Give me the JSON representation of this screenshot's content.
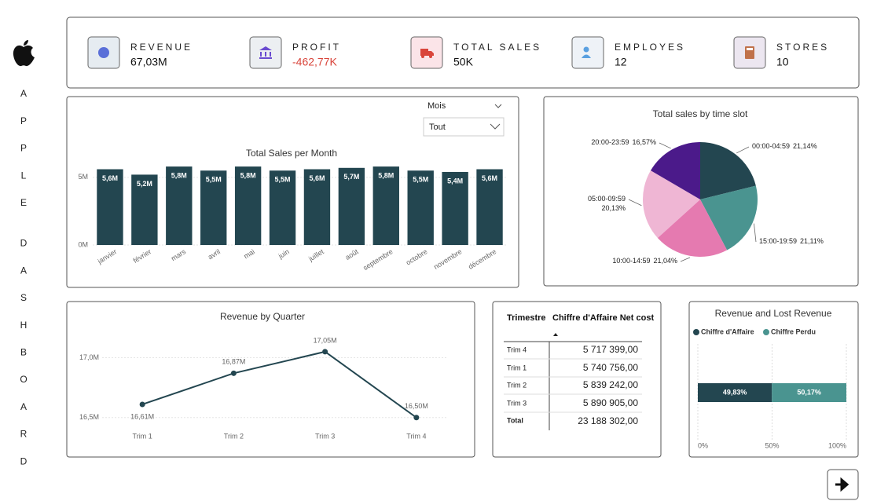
{
  "sidebar": [
    [
      "A",
      "P",
      "P",
      "L",
      "E"
    ],
    [
      "D",
      "A",
      "S",
      "H",
      "B",
      "O",
      "A",
      "R",
      "D"
    ]
  ],
  "kpis": [
    {
      "label": "REVENUE",
      "value": "67,03M"
    },
    {
      "label": "PROFIT",
      "value": "-462,77K"
    },
    {
      "label": "TOTAL SALES",
      "value": "50K"
    },
    {
      "label": "EMPLOYES",
      "value": "12"
    },
    {
      "label": "STORES",
      "value": "10"
    }
  ],
  "filter": {
    "label": "Mois",
    "value": "Tout"
  },
  "table": {
    "header": [
      "Trimestre",
      "Chiffre d'Affaire Net cost"
    ],
    "rows": [
      [
        "Trim 4",
        "5 717 399,00"
      ],
      [
        "Trim 1",
        "5 740 756,00"
      ],
      [
        "Trim 2",
        "5 839 242,00"
      ],
      [
        "Trim 3",
        "5 890 905,00"
      ]
    ],
    "total": [
      "Total",
      "23 188 302,00"
    ]
  },
  "chart_data": [
    {
      "type": "bar",
      "title": "Total Sales per Month",
      "categories": [
        "janvier",
        "février",
        "mars",
        "avril",
        "mai",
        "juin",
        "juillet",
        "août",
        "septembre",
        "octobre",
        "novembre",
        "décembre"
      ],
      "values": [
        5.6,
        5.2,
        5.8,
        5.5,
        5.8,
        5.5,
        5.6,
        5.7,
        5.8,
        5.5,
        5.4,
        5.6
      ],
      "value_labels": [
        "5,6M",
        "5,2M",
        "5,8M",
        "5,5M",
        "5,8M",
        "5,5M",
        "5,6M",
        "5,7M",
        "5,8M",
        "5,5M",
        "5,4M",
        "5,6M"
      ],
      "color": "#234650",
      "ylim": [
        0,
        6.5
      ],
      "yticks": [
        {
          "value": 0,
          "label": "0M"
        },
        {
          "value": 5,
          "label": "5M"
        }
      ],
      "grid": true
    },
    {
      "type": "pie",
      "title": "Total sales by time slot",
      "categories": [
        "00:00-04:59",
        "15:00-19:59",
        "10:00-14:59",
        "05:00-09:59",
        "20:00-23:59"
      ],
      "values": [
        21.14,
        21.11,
        21.04,
        20.13,
        16.57
      ],
      "value_labels": [
        "21,14%",
        "21,11%",
        "21,04%",
        "20,13%",
        "16,57%"
      ],
      "colors": [
        "#234650",
        "#4a9490",
        "#e57ab0",
        "#efb6d4",
        "#4b1a8a"
      ]
    },
    {
      "type": "line",
      "title": "Revenue by Quarter",
      "categories": [
        "Trim 1",
        "Trim 2",
        "Trim 3",
        "Trim 4"
      ],
      "values": [
        16.61,
        16.87,
        17.05,
        16.5
      ],
      "value_labels": [
        "16,61M",
        "16,87M",
        "17,05M",
        "16,50M"
      ],
      "color": "#234650",
      "ylim": [
        16.4,
        17.2
      ],
      "yticks": [
        {
          "value": 16.5,
          "label": "16,5M"
        },
        {
          "value": 17.0,
          "label": "17,0M"
        }
      ],
      "grid": true
    },
    {
      "type": "stacked-bar-horizontal",
      "title": "Revenue and Lost Revenue",
      "categories": [
        null
      ],
      "series": [
        {
          "name": "Chiffre d'Affaire",
          "color": "#234650",
          "values": [
            49.83
          ],
          "value_labels": [
            "49,83%"
          ]
        },
        {
          "name": "Chiffre Perdu",
          "color": "#4a9490",
          "values": [
            50.17
          ],
          "value_labels": [
            "50,17%"
          ]
        }
      ],
      "xlim": [
        0,
        100
      ],
      "xticks": [
        {
          "value": 0,
          "label": "0%"
        },
        {
          "value": 50,
          "label": "50%"
        },
        {
          "value": 100,
          "label": "100%"
        }
      ],
      "grid": true
    }
  ]
}
